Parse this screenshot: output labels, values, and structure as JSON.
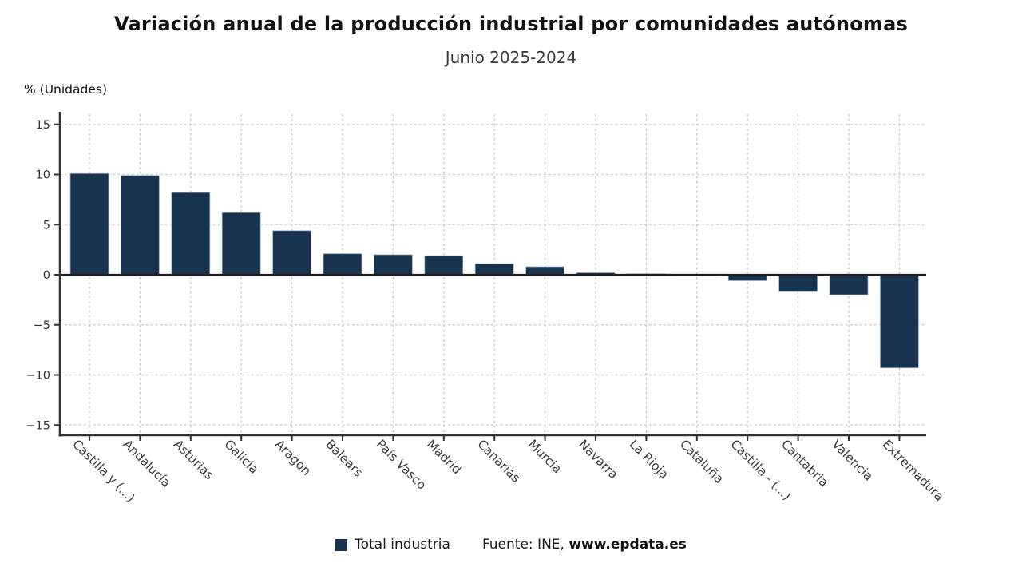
{
  "chart_data": {
    "type": "bar",
    "title": "Variación anual de la producción industrial por comunidades autónomas",
    "subtitle": "Junio 2025-2024",
    "ylabel": "% (Unidades)",
    "xlabel": "",
    "categories": [
      "Castilla y (...)",
      "Andalucía",
      "Asturias",
      "Galicia",
      "Aragón",
      "Balears",
      "País Vasco",
      "Madrid",
      "Canarias",
      "Murcia",
      "Navarra",
      "La Rioja",
      "Cataluña",
      "Castilla - (...)",
      "Cantabria",
      "Valencia",
      "Extremadura"
    ],
    "series": [
      {
        "name": "Total industria",
        "values": [
          10.1,
          9.9,
          8.2,
          6.2,
          4.4,
          2.1,
          2.0,
          1.9,
          1.1,
          0.8,
          0.2,
          0.1,
          -0.1,
          -0.6,
          -1.7,
          -2.0,
          -9.3
        ]
      }
    ],
    "ylim": [
      -16,
      16
    ],
    "yticks": [
      15,
      10,
      5,
      0,
      -5,
      -10,
      -15
    ],
    "ytick_labels": [
      "15",
      "10",
      "5",
      "0",
      "−5",
      "−10",
      "−15"
    ],
    "grid": true,
    "legend_position": "bottom"
  },
  "source": {
    "prefix": "Fuente: INE, ",
    "site": "www.epdata.es"
  },
  "colors": {
    "bar": "#17334d",
    "bar_edge": "#9db1c1",
    "axis": "#333333",
    "zero_line": "#1f1f1f",
    "grid": "#c3c3c3",
    "ytick_text": "#333333",
    "xtick_text": "#3d3d3d"
  }
}
